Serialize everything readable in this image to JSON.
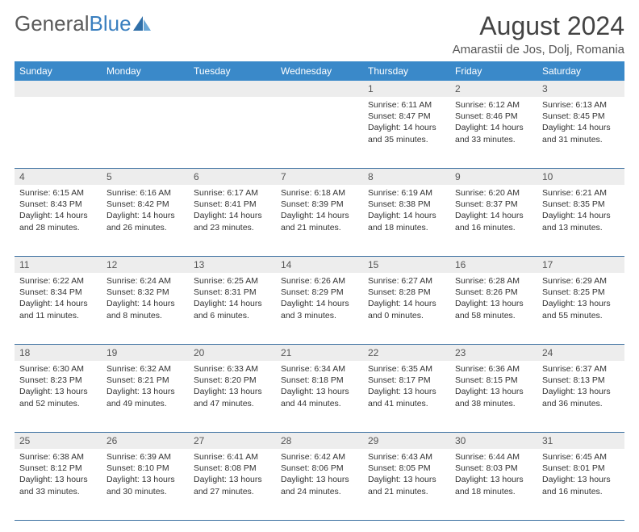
{
  "brand": {
    "part1": "General",
    "part2": "Blue"
  },
  "header": {
    "month_title": "August 2024",
    "location": "Amarastii de Jos, Dolj, Romania"
  },
  "colors": {
    "header_bg": "#3a89c9",
    "daynum_bg": "#ededed",
    "rule": "#3a6fa0"
  },
  "weekdays": [
    "Sunday",
    "Monday",
    "Tuesday",
    "Wednesday",
    "Thursday",
    "Friday",
    "Saturday"
  ],
  "weeks": [
    {
      "nums": [
        "",
        "",
        "",
        "",
        "1",
        "2",
        "3"
      ],
      "cells": [
        null,
        null,
        null,
        null,
        {
          "sunrise": "6:11 AM",
          "sunset": "8:47 PM",
          "daylight": "14 hours and 35 minutes."
        },
        {
          "sunrise": "6:12 AM",
          "sunset": "8:46 PM",
          "daylight": "14 hours and 33 minutes."
        },
        {
          "sunrise": "6:13 AM",
          "sunset": "8:45 PM",
          "daylight": "14 hours and 31 minutes."
        }
      ]
    },
    {
      "nums": [
        "4",
        "5",
        "6",
        "7",
        "8",
        "9",
        "10"
      ],
      "cells": [
        {
          "sunrise": "6:15 AM",
          "sunset": "8:43 PM",
          "daylight": "14 hours and 28 minutes."
        },
        {
          "sunrise": "6:16 AM",
          "sunset": "8:42 PM",
          "daylight": "14 hours and 26 minutes."
        },
        {
          "sunrise": "6:17 AM",
          "sunset": "8:41 PM",
          "daylight": "14 hours and 23 minutes."
        },
        {
          "sunrise": "6:18 AM",
          "sunset": "8:39 PM",
          "daylight": "14 hours and 21 minutes."
        },
        {
          "sunrise": "6:19 AM",
          "sunset": "8:38 PM",
          "daylight": "14 hours and 18 minutes."
        },
        {
          "sunrise": "6:20 AM",
          "sunset": "8:37 PM",
          "daylight": "14 hours and 16 minutes."
        },
        {
          "sunrise": "6:21 AM",
          "sunset": "8:35 PM",
          "daylight": "14 hours and 13 minutes."
        }
      ]
    },
    {
      "nums": [
        "11",
        "12",
        "13",
        "14",
        "15",
        "16",
        "17"
      ],
      "cells": [
        {
          "sunrise": "6:22 AM",
          "sunset": "8:34 PM",
          "daylight": "14 hours and 11 minutes."
        },
        {
          "sunrise": "6:24 AM",
          "sunset": "8:32 PM",
          "daylight": "14 hours and 8 minutes."
        },
        {
          "sunrise": "6:25 AM",
          "sunset": "8:31 PM",
          "daylight": "14 hours and 6 minutes."
        },
        {
          "sunrise": "6:26 AM",
          "sunset": "8:29 PM",
          "daylight": "14 hours and 3 minutes."
        },
        {
          "sunrise": "6:27 AM",
          "sunset": "8:28 PM",
          "daylight": "14 hours and 0 minutes."
        },
        {
          "sunrise": "6:28 AM",
          "sunset": "8:26 PM",
          "daylight": "13 hours and 58 minutes."
        },
        {
          "sunrise": "6:29 AM",
          "sunset": "8:25 PM",
          "daylight": "13 hours and 55 minutes."
        }
      ]
    },
    {
      "nums": [
        "18",
        "19",
        "20",
        "21",
        "22",
        "23",
        "24"
      ],
      "cells": [
        {
          "sunrise": "6:30 AM",
          "sunset": "8:23 PM",
          "daylight": "13 hours and 52 minutes."
        },
        {
          "sunrise": "6:32 AM",
          "sunset": "8:21 PM",
          "daylight": "13 hours and 49 minutes."
        },
        {
          "sunrise": "6:33 AM",
          "sunset": "8:20 PM",
          "daylight": "13 hours and 47 minutes."
        },
        {
          "sunrise": "6:34 AM",
          "sunset": "8:18 PM",
          "daylight": "13 hours and 44 minutes."
        },
        {
          "sunrise": "6:35 AM",
          "sunset": "8:17 PM",
          "daylight": "13 hours and 41 minutes."
        },
        {
          "sunrise": "6:36 AM",
          "sunset": "8:15 PM",
          "daylight": "13 hours and 38 minutes."
        },
        {
          "sunrise": "6:37 AM",
          "sunset": "8:13 PM",
          "daylight": "13 hours and 36 minutes."
        }
      ]
    },
    {
      "nums": [
        "25",
        "26",
        "27",
        "28",
        "29",
        "30",
        "31"
      ],
      "cells": [
        {
          "sunrise": "6:38 AM",
          "sunset": "8:12 PM",
          "daylight": "13 hours and 33 minutes."
        },
        {
          "sunrise": "6:39 AM",
          "sunset": "8:10 PM",
          "daylight": "13 hours and 30 minutes."
        },
        {
          "sunrise": "6:41 AM",
          "sunset": "8:08 PM",
          "daylight": "13 hours and 27 minutes."
        },
        {
          "sunrise": "6:42 AM",
          "sunset": "8:06 PM",
          "daylight": "13 hours and 24 minutes."
        },
        {
          "sunrise": "6:43 AM",
          "sunset": "8:05 PM",
          "daylight": "13 hours and 21 minutes."
        },
        {
          "sunrise": "6:44 AM",
          "sunset": "8:03 PM",
          "daylight": "13 hours and 18 minutes."
        },
        {
          "sunrise": "6:45 AM",
          "sunset": "8:01 PM",
          "daylight": "13 hours and 16 minutes."
        }
      ]
    }
  ],
  "labels": {
    "sunrise": "Sunrise: ",
    "sunset": "Sunset: ",
    "daylight": "Daylight: "
  }
}
